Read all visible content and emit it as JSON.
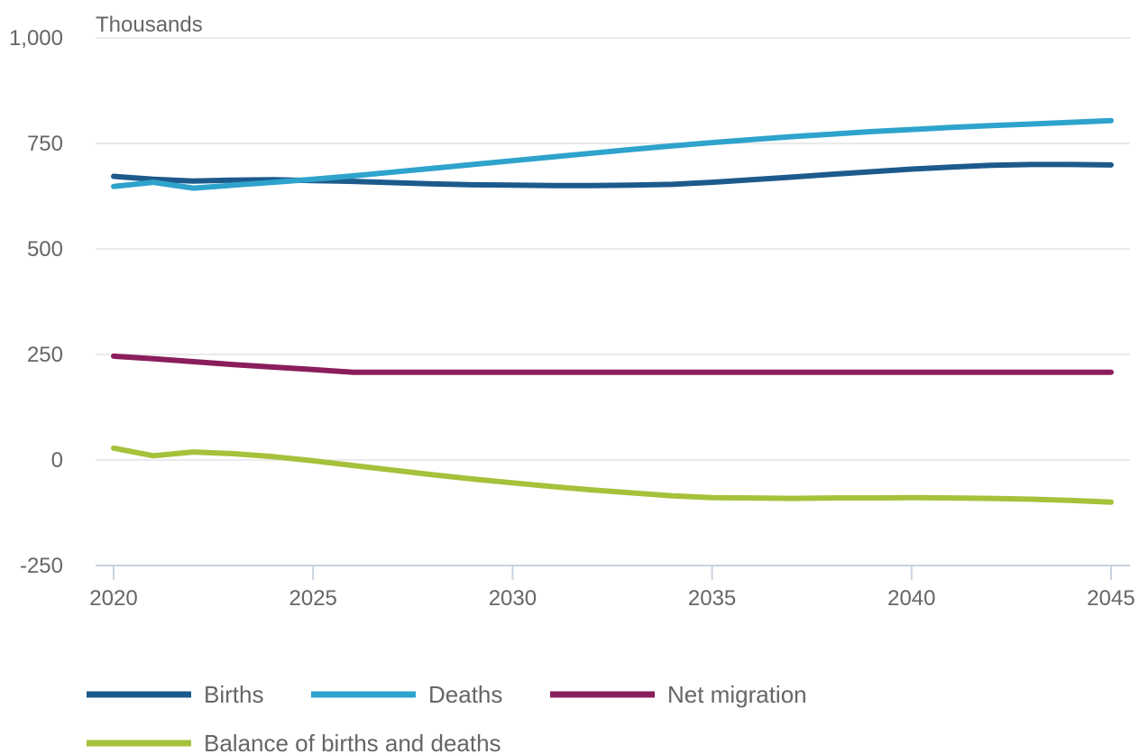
{
  "chart_data": {
    "type": "line",
    "title": "",
    "ylabel": "Thousands",
    "xlabel": "",
    "xlim": [
      2020,
      2045
    ],
    "ylim": [
      -250,
      1000
    ],
    "x_ticks": [
      "2020",
      "2025",
      "2030",
      "2035",
      "2040",
      "2045"
    ],
    "y_ticks": [
      "-250",
      "0",
      "250",
      "500",
      "750",
      "1,000"
    ],
    "grid": "horizontal",
    "legend_position": "bottom",
    "x": [
      2020,
      2021,
      2022,
      2023,
      2024,
      2025,
      2026,
      2027,
      2028,
      2029,
      2030,
      2031,
      2032,
      2033,
      2034,
      2035,
      2036,
      2037,
      2038,
      2039,
      2040,
      2041,
      2042,
      2043,
      2044,
      2045
    ],
    "series": [
      {
        "name": "Births",
        "color": "#1d5a8c",
        "values": [
          672,
          665,
          661,
          663,
          664,
          662,
          660,
          657,
          654,
          652,
          651,
          650,
          650,
          651,
          653,
          658,
          664,
          670,
          677,
          683,
          689,
          694,
          698,
          700,
          700,
          699
        ]
      },
      {
        "name": "Deaths",
        "color": "#2ea3cc",
        "values": [
          648,
          658,
          644,
          651,
          658,
          665,
          673,
          682,
          691,
          700,
          709,
          718,
          727,
          736,
          744,
          752,
          759,
          766,
          772,
          778,
          783,
          788,
          792,
          796,
          800,
          804
        ]
      },
      {
        "name": "Net migration",
        "color": "#8a1e5c",
        "values": [
          246,
          240,
          233,
          226,
          220,
          214,
          208,
          208,
          208,
          208,
          208,
          208,
          208,
          208,
          208,
          208,
          208,
          208,
          208,
          208,
          208,
          208,
          208,
          208,
          208,
          208
        ]
      },
      {
        "name": "Balance of births and deaths",
        "color": "#a6c13a",
        "values": [
          28,
          10,
          19,
          15,
          8,
          -2,
          -13,
          -24,
          -35,
          -45,
          -54,
          -63,
          -71,
          -78,
          -85,
          -89,
          -90,
          -91,
          -90,
          -90,
          -89,
          -90,
          -91,
          -93,
          -96,
          -100
        ]
      }
    ]
  }
}
